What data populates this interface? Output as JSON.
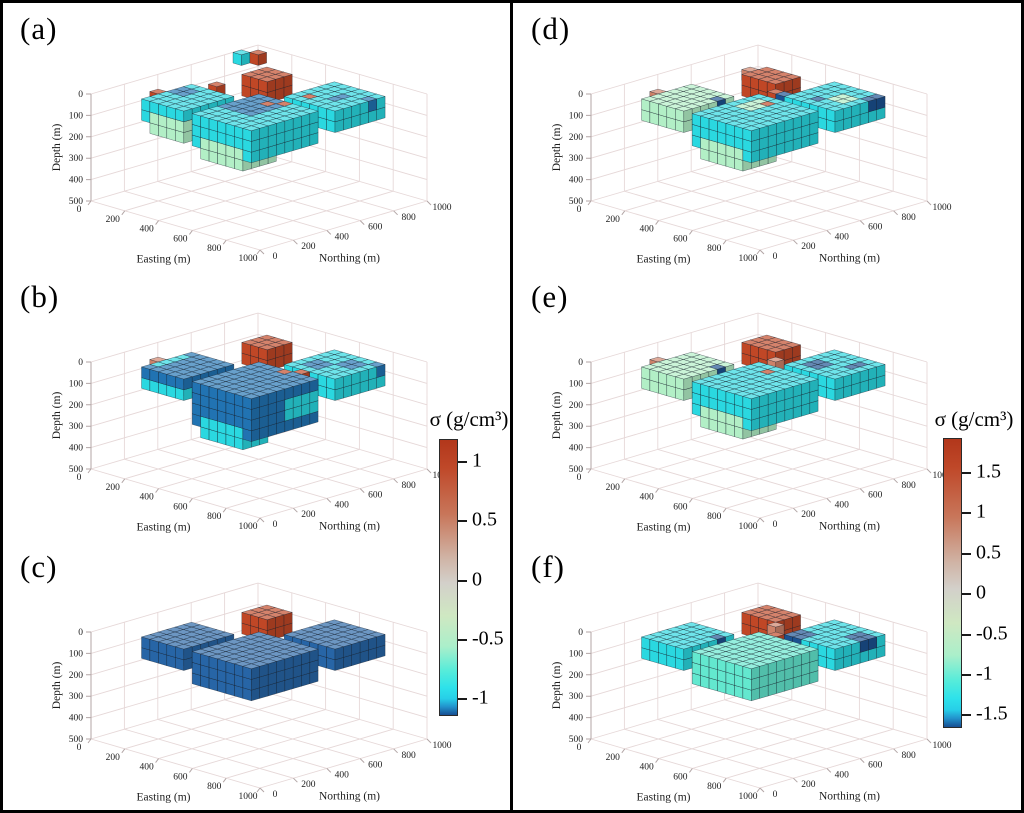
{
  "figure": {
    "background": "#ffffff",
    "border_color": "#000000",
    "grid_color": "#e6d8d8",
    "axis_color": "#b3a6a6"
  },
  "colorbars": [
    {
      "side": "left",
      "title": "σ (g/cm³)",
      "range": [
        -1,
        1
      ],
      "tick_labels": [
        "1",
        "0.5",
        "0",
        "-0.5",
        "-1"
      ]
    },
    {
      "side": "right",
      "title": "σ (g/cm³)",
      "range": [
        -1.5,
        1.5
      ],
      "tick_labels": [
        "1.5",
        "1",
        "0.5",
        "0",
        "-0.5",
        "-1",
        "-1.5"
      ]
    }
  ],
  "chart_data": {
    "type": "voxel3d-small-multiples",
    "layout": "2 columns x 3 rows, panels (a)(b)(c) left column share left colorbar, (d)(e)(f) right column share right colorbar",
    "axes": {
      "x": {
        "label": "Easting (m)",
        "range": [
          0,
          1000
        ],
        "ticks": [
          0,
          200,
          400,
          600,
          800,
          1000
        ]
      },
      "y": {
        "label": "Northing (m)",
        "range": [
          0,
          1000
        ],
        "ticks": [
          0,
          200,
          400,
          600,
          800,
          1000
        ]
      },
      "z": {
        "label": "Depth (m)",
        "range": [
          0,
          500
        ],
        "ticks": [
          0,
          100,
          200,
          300,
          400,
          500
        ],
        "reversed": true
      }
    },
    "voxel_size_m": 50,
    "color_classes": {
      "cyan": {
        "hex": "#2ad8e0"
      },
      "mint": {
        "hex": "#63e8cf"
      },
      "pale": {
        "hex": "#b2efc6"
      },
      "blue": {
        "hex": "#2173b2"
      },
      "steel": {
        "hex": "#2765a6"
      },
      "navy": {
        "hex": "#1b5190"
      },
      "orange": {
        "hex": "#c04726"
      },
      "salmon": {
        "hex": "#cd8168"
      }
    },
    "approx_sigma_by_scale": {
      "left_panels_abc": {
        "cyan": -0.75,
        "pale": -0.45,
        "blue": -0.9,
        "steel": -0.95,
        "orange": 1.0,
        "salmon": 0.5
      },
      "right_panels_def": {
        "cyan": -1.2,
        "mint": -1.0,
        "pale": -0.7,
        "navy": -1.5,
        "orange": 1.4,
        "salmon": 0.7
      }
    },
    "panels": [
      {
        "id": "a",
        "label": "(a)",
        "colorbar": "left",
        "voxel_boxes": [
          [
            0,
            50,
            850,
            900,
            0,
            50,
            "cyan"
          ],
          [
            50,
            100,
            900,
            950,
            0,
            50,
            "orange"
          ],
          [
            250,
            400,
            650,
            800,
            0,
            100,
            "orange"
          ],
          [
            150,
            200,
            200,
            250,
            0,
            50,
            "orange"
          ],
          [
            200,
            450,
            100,
            400,
            0,
            100,
            "cyan"
          ],
          [
            250,
            450,
            100,
            250,
            50,
            150,
            "pale"
          ],
          [
            200,
            300,
            250,
            350,
            0,
            50,
            "blue"
          ],
          [
            500,
            850,
            100,
            500,
            0,
            150,
            "cyan"
          ],
          [
            550,
            800,
            100,
            300,
            100,
            200,
            "pale"
          ],
          [
            500,
            700,
            250,
            500,
            0,
            100,
            "blue"
          ],
          [
            600,
            650,
            400,
            450,
            0,
            50,
            "orange"
          ],
          [
            650,
            700,
            450,
            500,
            0,
            50,
            "orange"
          ],
          [
            250,
            300,
            450,
            500,
            0,
            50,
            "orange"
          ],
          [
            600,
            900,
            550,
            850,
            0,
            100,
            "cyan"
          ],
          [
            650,
            700,
            600,
            650,
            0,
            50,
            "orange"
          ],
          [
            750,
            800,
            650,
            750,
            0,
            50,
            "blue"
          ],
          [
            850,
            900,
            750,
            800,
            0,
            50,
            "blue"
          ]
        ]
      },
      {
        "id": "b",
        "label": "(b)",
        "colorbar": "left",
        "voxel_boxes": [
          [
            250,
            400,
            650,
            800,
            0,
            100,
            "orange"
          ],
          [
            150,
            200,
            200,
            250,
            0,
            50,
            "salmon"
          ],
          [
            200,
            450,
            100,
            400,
            0,
            100,
            "blue"
          ],
          [
            200,
            450,
            100,
            250,
            50,
            100,
            "cyan"
          ],
          [
            200,
            250,
            150,
            350,
            0,
            100,
            "cyan"
          ],
          [
            500,
            850,
            100,
            500,
            0,
            200,
            "blue"
          ],
          [
            550,
            800,
            100,
            250,
            150,
            250,
            "cyan"
          ],
          [
            750,
            850,
            300,
            500,
            50,
            150,
            "cyan"
          ],
          [
            600,
            700,
            200,
            300,
            200,
            250,
            "cyan"
          ],
          [
            650,
            700,
            450,
            500,
            0,
            50,
            "orange"
          ],
          [
            700,
            750,
            500,
            550,
            0,
            50,
            "orange"
          ],
          [
            600,
            900,
            550,
            850,
            0,
            100,
            "cyan"
          ],
          [
            650,
            750,
            600,
            700,
            0,
            50,
            "blue"
          ],
          [
            750,
            850,
            700,
            800,
            0,
            50,
            "blue"
          ],
          [
            850,
            900,
            800,
            850,
            0,
            50,
            "blue"
          ]
        ]
      },
      {
        "id": "c",
        "label": "(c)",
        "colorbar": "left",
        "voxel_boxes": [
          [
            250,
            400,
            650,
            800,
            0,
            100,
            "orange"
          ],
          [
            200,
            450,
            100,
            400,
            0,
            100,
            "steel"
          ],
          [
            500,
            850,
            100,
            500,
            0,
            150,
            "steel"
          ],
          [
            600,
            900,
            550,
            850,
            0,
            100,
            "steel"
          ]
        ]
      },
      {
        "id": "d",
        "label": "(d)",
        "colorbar": "right",
        "voxel_boxes": [
          [
            250,
            450,
            650,
            800,
            0,
            100,
            "orange"
          ],
          [
            200,
            250,
            700,
            750,
            0,
            50,
            "salmon"
          ],
          [
            150,
            200,
            200,
            250,
            0,
            50,
            "salmon"
          ],
          [
            200,
            450,
            100,
            400,
            0,
            100,
            "pale"
          ],
          [
            400,
            450,
            300,
            350,
            0,
            50,
            "navy"
          ],
          [
            500,
            850,
            100,
            500,
            0,
            150,
            "cyan"
          ],
          [
            550,
            800,
            100,
            300,
            100,
            200,
            "pale"
          ],
          [
            550,
            650,
            300,
            450,
            0,
            50,
            "pale"
          ],
          [
            600,
            650,
            400,
            450,
            0,
            50,
            "orange"
          ],
          [
            500,
            550,
            550,
            600,
            0,
            50,
            "orange"
          ],
          [
            550,
            600,
            550,
            600,
            0,
            50,
            "navy"
          ],
          [
            600,
            900,
            550,
            850,
            0,
            100,
            "cyan"
          ],
          [
            700,
            750,
            600,
            650,
            0,
            50,
            "navy"
          ],
          [
            750,
            850,
            650,
            750,
            0,
            50,
            "pale"
          ],
          [
            850,
            900,
            750,
            850,
            0,
            50,
            "navy"
          ]
        ]
      },
      {
        "id": "e",
        "label": "(e)",
        "colorbar": "right",
        "voxel_boxes": [
          [
            250,
            450,
            650,
            800,
            0,
            100,
            "orange"
          ],
          [
            150,
            200,
            200,
            250,
            0,
            50,
            "salmon"
          ],
          [
            200,
            450,
            100,
            400,
            0,
            100,
            "pale"
          ],
          [
            400,
            450,
            300,
            350,
            0,
            50,
            "navy"
          ],
          [
            500,
            850,
            100,
            500,
            0,
            150,
            "cyan"
          ],
          [
            550,
            800,
            100,
            300,
            100,
            200,
            "pale"
          ],
          [
            600,
            650,
            400,
            450,
            0,
            50,
            "orange"
          ],
          [
            500,
            550,
            550,
            600,
            0,
            50,
            "salmon"
          ],
          [
            600,
            900,
            550,
            850,
            0,
            100,
            "cyan"
          ],
          [
            700,
            800,
            550,
            650,
            50,
            100,
            "cyan"
          ],
          [
            650,
            750,
            600,
            700,
            0,
            50,
            "navy"
          ],
          [
            800,
            850,
            700,
            800,
            0,
            50,
            "navy"
          ]
        ]
      },
      {
        "id": "f",
        "label": "(f)",
        "colorbar": "right",
        "voxel_boxes": [
          [
            250,
            450,
            650,
            800,
            0,
            100,
            "orange"
          ],
          [
            200,
            450,
            100,
            400,
            0,
            100,
            "cyan"
          ],
          [
            400,
            450,
            300,
            350,
            0,
            50,
            "navy"
          ],
          [
            500,
            850,
            100,
            500,
            0,
            150,
            "mint"
          ],
          [
            500,
            700,
            300,
            500,
            0,
            100,
            "mint"
          ],
          [
            550,
            600,
            500,
            550,
            0,
            50,
            "orange"
          ],
          [
            450,
            500,
            600,
            650,
            0,
            50,
            "salmon"
          ],
          [
            600,
            900,
            550,
            850,
            0,
            100,
            "cyan"
          ],
          [
            600,
            700,
            550,
            650,
            0,
            50,
            "navy"
          ],
          [
            800,
            900,
            700,
            800,
            0,
            50,
            "navy"
          ]
        ]
      }
    ]
  }
}
